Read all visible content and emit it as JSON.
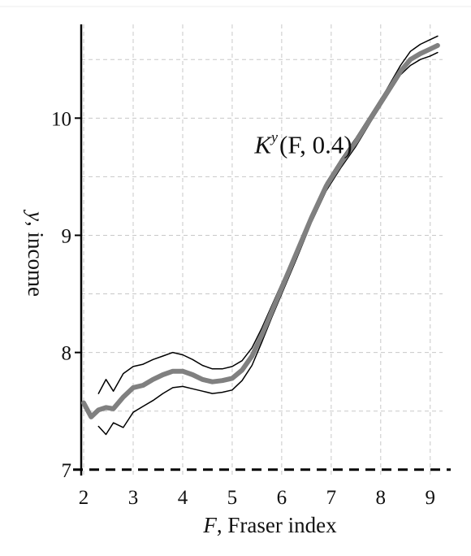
{
  "chart_data": {
    "type": "line",
    "title": "",
    "xlabel": "F, Fraser index",
    "xlabel_var": "F",
    "xlabel_text": ", Fraser index",
    "ylabel": "y, income",
    "ylabel_var": "y",
    "ylabel_text": ", income",
    "xlim": [
      1.95,
      9.25
    ],
    "ylim": [
      6.95,
      10.8
    ],
    "xticks": [
      2,
      3,
      4,
      5,
      6,
      7,
      8,
      9
    ],
    "yticks": [
      7,
      8,
      9,
      10
    ],
    "grid": true,
    "reference_line": {
      "y": 7,
      "style": "dashed"
    },
    "annotation": {
      "full": "K^y(F, 0.4)",
      "base": "K",
      "sup": "y",
      "rest": "(F, 0.4)",
      "x": 5.45,
      "y": 9.7
    },
    "series": [
      {
        "role": "estimate",
        "color": "#808080",
        "x": [
          2.0,
          2.15,
          2.3,
          2.45,
          2.6,
          2.8,
          3.0,
          3.2,
          3.4,
          3.6,
          3.8,
          4.0,
          4.2,
          4.4,
          4.6,
          4.8,
          5.0,
          5.2,
          5.4,
          5.6,
          5.8,
          6.0,
          6.3,
          6.6,
          6.9,
          7.2,
          7.5,
          7.8,
          8.1,
          8.4,
          8.6,
          8.8,
          9.0,
          9.15
        ],
        "y": [
          7.57,
          7.45,
          7.51,
          7.53,
          7.52,
          7.62,
          7.7,
          7.72,
          7.77,
          7.81,
          7.84,
          7.84,
          7.81,
          7.77,
          7.75,
          7.76,
          7.78,
          7.85,
          7.97,
          8.15,
          8.35,
          8.55,
          8.85,
          9.15,
          9.42,
          9.62,
          9.8,
          10.0,
          10.2,
          10.4,
          10.5,
          10.55,
          10.59,
          10.62
        ]
      },
      {
        "role": "upper-band",
        "color": "#000000",
        "x": [
          2.3,
          2.45,
          2.6,
          2.8,
          3.0,
          3.2,
          3.4,
          3.6,
          3.8,
          4.0,
          4.2,
          4.4,
          4.6,
          4.8,
          5.0,
          5.2,
          5.4,
          5.6,
          5.8,
          6.0,
          6.3,
          6.6,
          6.9,
          7.2,
          7.5,
          7.8,
          8.1,
          8.4,
          8.6,
          8.8,
          9.0,
          9.15
        ],
        "y": [
          7.65,
          7.77,
          7.67,
          7.82,
          7.88,
          7.9,
          7.94,
          7.97,
          8.0,
          7.98,
          7.94,
          7.89,
          7.86,
          7.86,
          7.88,
          7.93,
          8.04,
          8.21,
          8.4,
          8.59,
          8.88,
          9.18,
          9.45,
          9.65,
          9.83,
          10.03,
          10.23,
          10.45,
          10.57,
          10.63,
          10.67,
          10.7
        ]
      },
      {
        "role": "lower-band",
        "color": "#000000",
        "x": [
          2.3,
          2.45,
          2.6,
          2.8,
          3.0,
          3.2,
          3.4,
          3.6,
          3.8,
          4.0,
          4.2,
          4.4,
          4.6,
          4.8,
          5.0,
          5.2,
          5.4,
          5.6,
          5.8,
          6.0,
          6.3,
          6.6,
          6.9,
          7.2,
          7.5,
          7.8,
          8.1,
          8.4,
          8.6,
          8.8,
          9.0,
          9.15
        ],
        "y": [
          7.37,
          7.3,
          7.4,
          7.36,
          7.49,
          7.54,
          7.59,
          7.65,
          7.7,
          7.71,
          7.69,
          7.67,
          7.65,
          7.66,
          7.68,
          7.76,
          7.89,
          8.09,
          8.3,
          8.5,
          8.8,
          9.11,
          9.38,
          9.58,
          9.76,
          9.97,
          10.17,
          10.37,
          10.45,
          10.5,
          10.53,
          10.56
        ]
      }
    ]
  }
}
